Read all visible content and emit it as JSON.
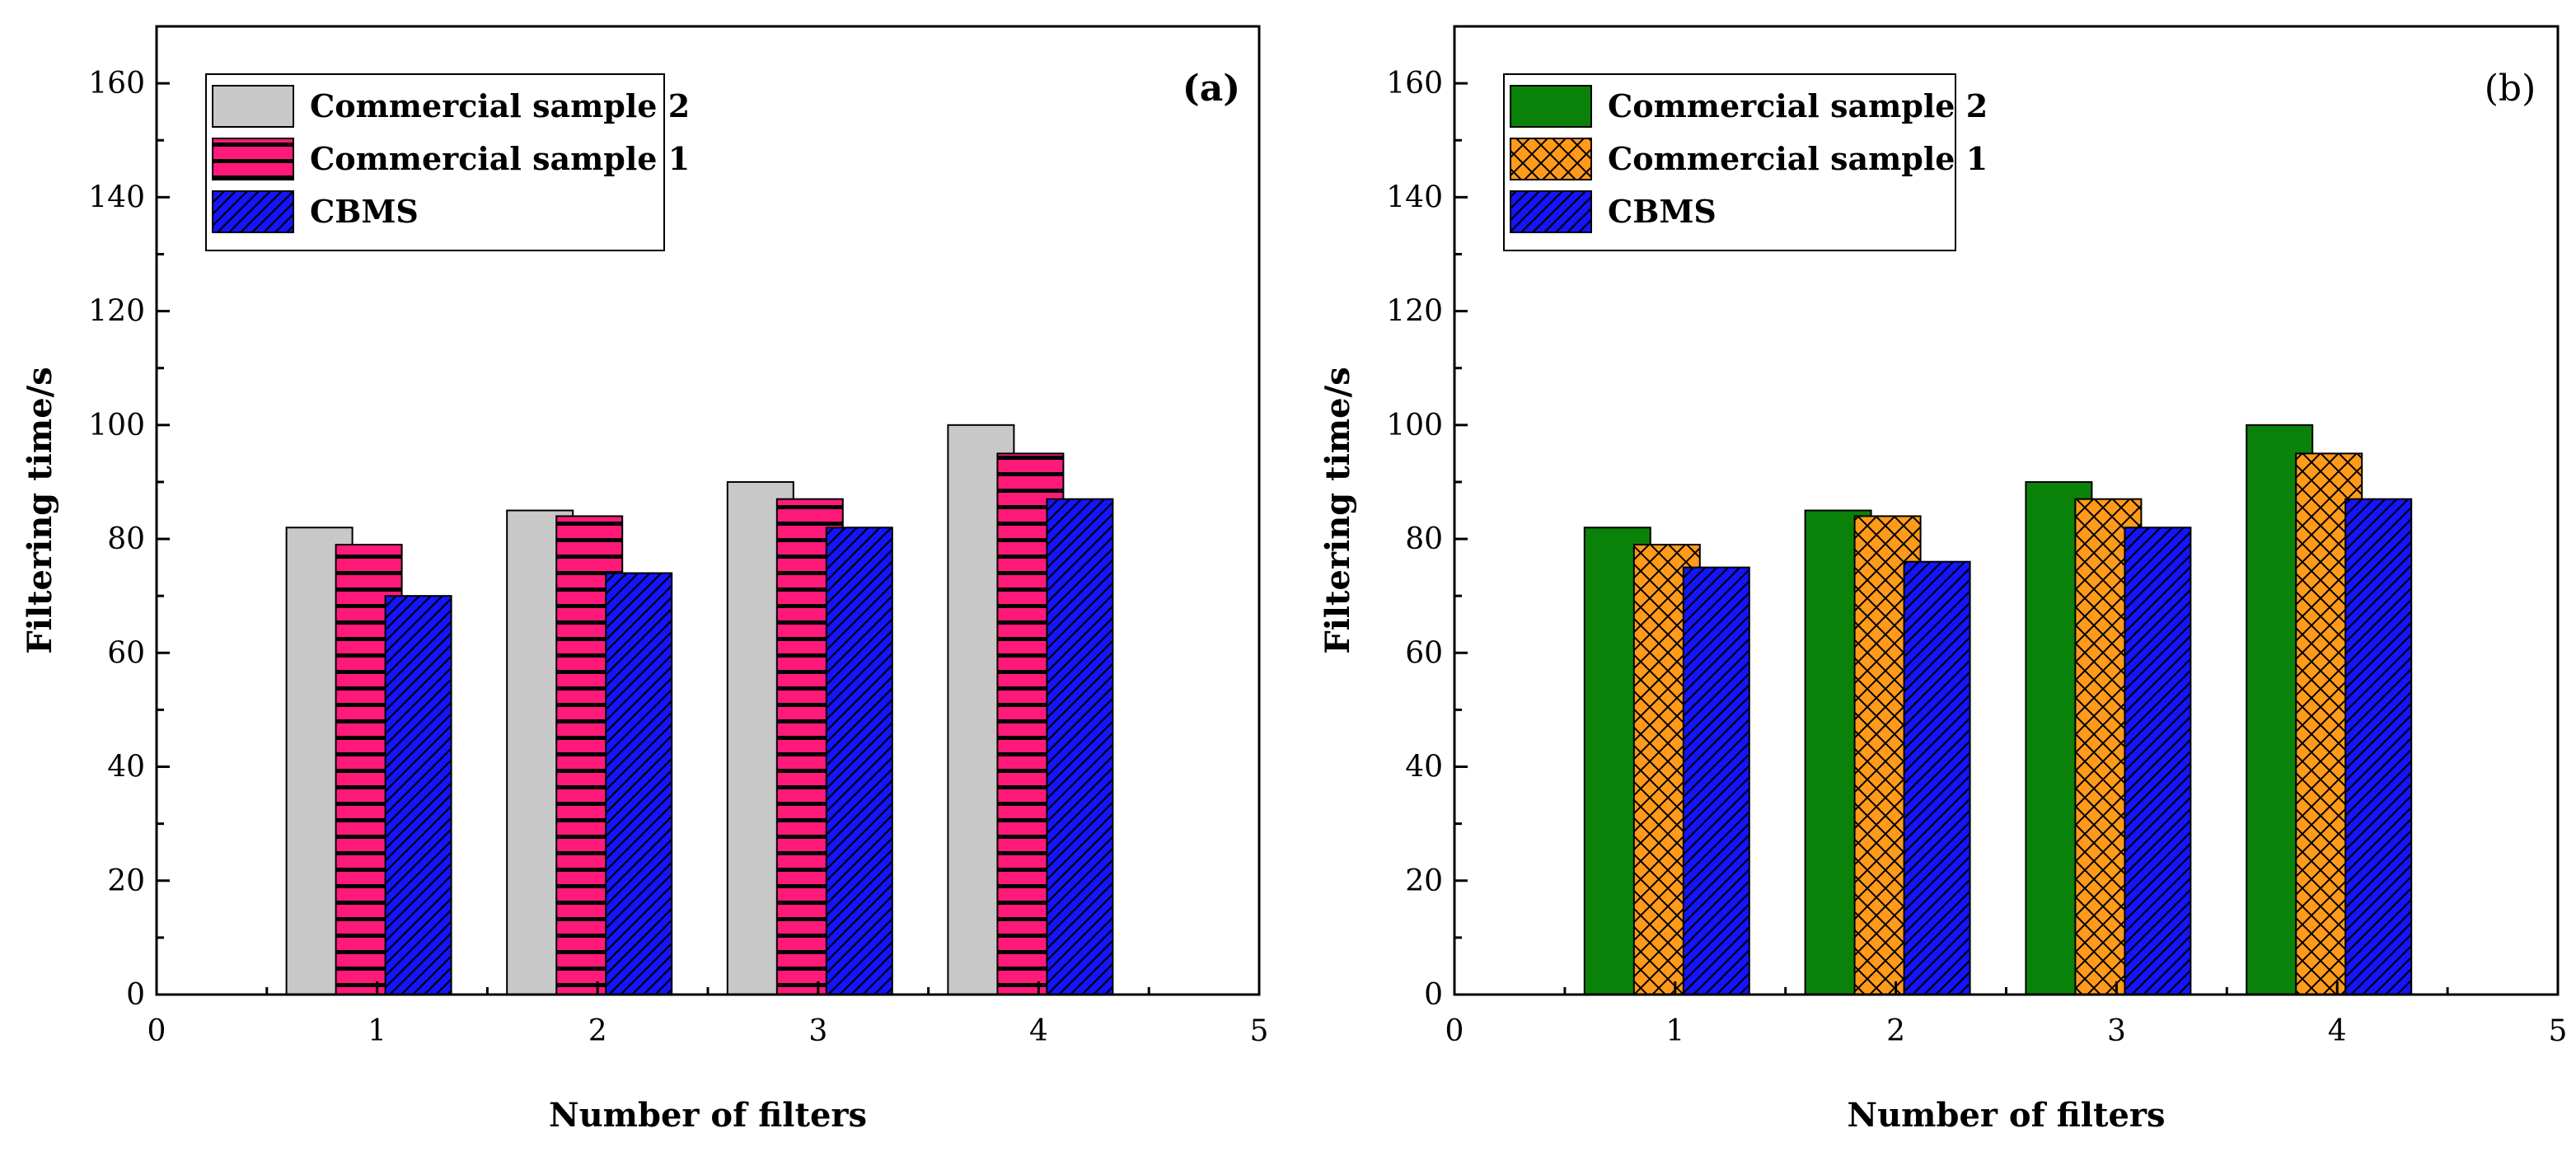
{
  "colors": {
    "gray": "#c8c8c8",
    "pink": "#ff1a7a",
    "blue": "#1414ff",
    "green": "#0a820a",
    "orange": "#ff9a1a",
    "axis": "#000000"
  },
  "chart_data": [
    {
      "type": "bar",
      "panel_label": "(a)",
      "xlabel": "Number of filters",
      "ylabel": "Filtering time/s",
      "xlim": [
        0,
        5
      ],
      "ylim": [
        0,
        170
      ],
      "xticks": [
        "0",
        "1",
        "2",
        "3",
        "4",
        "5"
      ],
      "yticks": [
        "0",
        "20",
        "40",
        "60",
        "80",
        "100",
        "120",
        "140",
        "160"
      ],
      "categories": [
        1,
        2,
        3,
        4
      ],
      "legend_position": "top-left",
      "series": [
        {
          "name": "Commercial sample 2",
          "values": [
            82,
            85,
            90,
            100
          ],
          "color": "#c8c8c8",
          "pattern": "none"
        },
        {
          "name": "Commercial sample 1",
          "values": [
            79,
            84,
            87,
            95
          ],
          "color": "#ff1a7a",
          "pattern": "horizontal"
        },
        {
          "name": "CBMS",
          "values": [
            70,
            74,
            82,
            87
          ],
          "color": "#1414ff",
          "pattern": "diagonal"
        }
      ]
    },
    {
      "type": "bar",
      "panel_label": "(b)",
      "xlabel": "Number of filters",
      "ylabel": "Filtering time/s",
      "xlim": [
        0,
        5
      ],
      "ylim": [
        0,
        170
      ],
      "xticks": [
        "0",
        "1",
        "2",
        "3",
        "4",
        "5"
      ],
      "yticks": [
        "0",
        "20",
        "40",
        "60",
        "80",
        "100",
        "120",
        "140",
        "160"
      ],
      "categories": [
        1,
        2,
        3,
        4
      ],
      "legend_position": "top-left",
      "series": [
        {
          "name": "Commercial sample 2",
          "values": [
            82,
            85,
            90,
            100
          ],
          "color": "#0a820a",
          "pattern": "none"
        },
        {
          "name": "Commercial sample 1",
          "values": [
            79,
            84,
            87,
            95
          ],
          "color": "#ff9a1a",
          "pattern": "crosshatch"
        },
        {
          "name": "CBMS",
          "values": [
            75,
            76,
            82,
            87
          ],
          "color": "#1414ff",
          "pattern": "diagonal"
        }
      ]
    }
  ]
}
